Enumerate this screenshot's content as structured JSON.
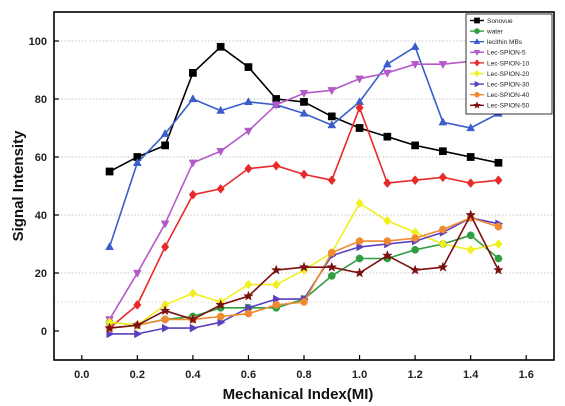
{
  "chart_data": {
    "type": "line",
    "title": "",
    "xlabel": "Mechanical Index(MI)",
    "ylabel": "Signal Intensity",
    "xlim": [
      -0.1,
      1.7
    ],
    "ylim": [
      -10,
      110
    ],
    "x_ticks": [
      "0.0",
      "0.2",
      "0.4",
      "0.6",
      "0.8",
      "1.0",
      "1.2",
      "1.4",
      "1.6"
    ],
    "y_ticks": [
      "0",
      "20",
      "40",
      "60",
      "80",
      "100"
    ],
    "grid": "horizontal dotted",
    "legend_position": "top-right",
    "x": [
      0.1,
      0.2,
      0.3,
      0.4,
      0.5,
      0.6,
      0.7,
      0.8,
      0.9,
      1.0,
      1.1,
      1.2,
      1.3,
      1.4,
      1.5
    ],
    "series": [
      {
        "name": "Sonovue",
        "color": "#000000",
        "marker": "square",
        "values": [
          55,
          60,
          64,
          89,
          98,
          91,
          80,
          79,
          74,
          70,
          67,
          64,
          62,
          60,
          58
        ]
      },
      {
        "name": "water",
        "color": "#2e9e3e",
        "marker": "circle",
        "values": [
          3,
          2,
          4,
          5,
          8,
          8,
          8,
          11,
          19,
          25,
          25,
          28,
          30,
          33,
          25
        ]
      },
      {
        "name": "lecithin MBs",
        "color": "#3a5fcd",
        "marker": "triangle-up",
        "values": [
          29,
          58,
          68,
          80,
          76,
          79,
          78,
          75,
          71,
          79,
          92,
          98,
          72,
          70,
          75
        ]
      },
      {
        "name": "Lec-SPION-5",
        "color": "#b45ac8",
        "marker": "triangle-down",
        "values": [
          4,
          20,
          37,
          58,
          62,
          69,
          78,
          82,
          83,
          87,
          89,
          92,
          92,
          93,
          93
        ]
      },
      {
        "name": "Lec-SPION-10",
        "color": "#e82a2a",
        "marker": "diamond",
        "values": [
          1,
          9,
          29,
          47,
          49,
          56,
          57,
          54,
          52,
          77,
          51,
          52,
          53,
          51,
          52
        ]
      },
      {
        "name": "Lec-SPION-20",
        "color": "#f0f020",
        "marker": "diamond",
        "values": [
          3,
          2,
          9,
          13,
          10,
          16,
          16,
          21,
          27,
          44,
          38,
          34,
          30,
          28,
          30
        ]
      },
      {
        "name": "Lec-SPION-30",
        "color": "#5a3fbf",
        "marker": "triangle-right",
        "values": [
          -1,
          -1,
          1,
          1,
          3,
          8,
          11,
          11,
          26,
          29,
          30,
          31,
          34,
          39,
          37
        ]
      },
      {
        "name": "Lec-SPION-40",
        "color": "#f08a30",
        "marker": "circle",
        "values": [
          1,
          2,
          4,
          4,
          5,
          6,
          9,
          10,
          27,
          31,
          31,
          32,
          35,
          39,
          36
        ]
      },
      {
        "name": "Lec-SPION-50",
        "color": "#7a1010",
        "marker": "star",
        "values": [
          1,
          2,
          7,
          4,
          9,
          12,
          21,
          22,
          22,
          20,
          26,
          21,
          22,
          40,
          21
        ]
      }
    ]
  }
}
